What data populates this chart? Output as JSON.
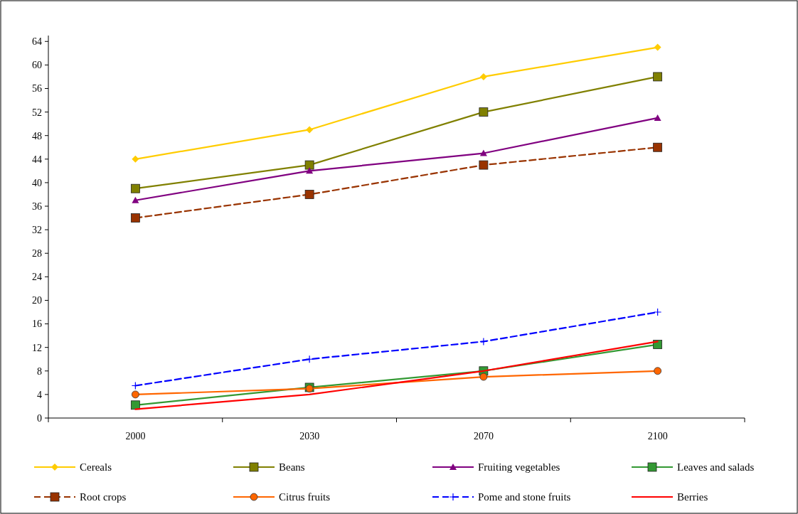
{
  "chart_data": {
    "type": "line",
    "categories": [
      "2000",
      "2030",
      "2070",
      "2100"
    ],
    "ylim": [
      0,
      65
    ],
    "yticks": [
      0,
      4,
      8,
      12,
      16,
      20,
      24,
      28,
      32,
      36,
      40,
      44,
      48,
      52,
      56,
      60,
      64
    ],
    "grid": false,
    "legend": "bottom",
    "series": [
      {
        "name": "Cereals",
        "color": "#ffcc00",
        "marker": "diamond",
        "line_style": "solid",
        "values": [
          44,
          49,
          58,
          63
        ]
      },
      {
        "name": "Beans",
        "color": "#808000",
        "marker": "square",
        "line_style": "solid",
        "values": [
          39,
          43,
          52,
          58
        ]
      },
      {
        "name": "Fruiting vegetables",
        "color": "#800080",
        "marker": "triangle",
        "line_style": "solid",
        "values": [
          37,
          42,
          45,
          51
        ]
      },
      {
        "name": "Leaves and salads",
        "color": "#339933",
        "marker": "square",
        "line_style": "solid",
        "values": [
          2.2,
          5.2,
          8,
          12.5
        ]
      },
      {
        "name": "Root crops",
        "color": "#993300",
        "marker": "square",
        "line_style": "dashed",
        "values": [
          34,
          38,
          43,
          46
        ]
      },
      {
        "name": "Citrus fruits",
        "color": "#ff6600",
        "marker": "circle",
        "line_style": "solid",
        "values": [
          4,
          5,
          7,
          8
        ]
      },
      {
        "name": "Pome and stone fruits",
        "color": "#0000ff",
        "marker": "cross",
        "line_style": "dashed",
        "values": [
          5.5,
          10,
          13,
          18
        ]
      },
      {
        "name": "Berries",
        "color": "#ff0000",
        "marker": "none",
        "line_style": "solid",
        "values": [
          1.5,
          4,
          8,
          13
        ]
      }
    ]
  }
}
